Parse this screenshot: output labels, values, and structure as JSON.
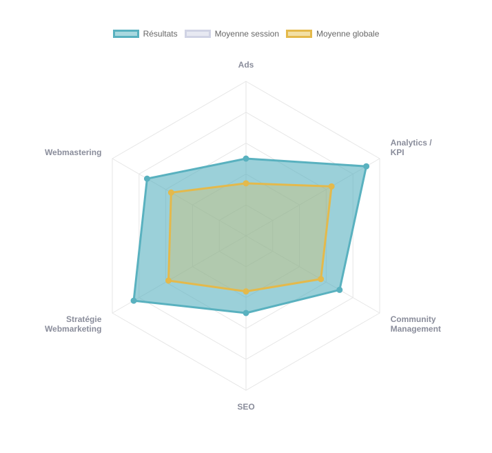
{
  "chart_data": {
    "type": "radar",
    "axes": [
      "Ads",
      "Analytics / KPI",
      "Community Management",
      "SEO",
      "Stratégie Webmarketing",
      "Webmastering"
    ],
    "axis_labels": [
      [
        "Ads"
      ],
      [
        "Analytics /",
        "KPI"
      ],
      [
        "Community",
        "Management"
      ],
      [
        "SEO"
      ],
      [
        "Stratégie",
        "Webmarketing"
      ],
      [
        "Webmastering"
      ]
    ],
    "scale": {
      "min": 0,
      "max": 5,
      "step": 1
    },
    "legend_position": "top",
    "grid": true,
    "series": [
      {
        "name": "Résultats",
        "values": [
          2.5,
          4.5,
          3.5,
          2.5,
          4.2,
          3.7
        ],
        "stroke": "#59b1bf",
        "fill": "rgba(89,177,191,0.6)",
        "swatch_fill": "#a9d8df",
        "visible": true
      },
      {
        "name": "Moyenne session",
        "values": [
          0,
          0,
          0,
          0,
          0,
          0
        ],
        "stroke": "#d0d3e4",
        "fill": "rgba(208,211,228,0.5)",
        "swatch_fill": "#e7e9f2",
        "visible": false
      },
      {
        "name": "Moyenne globale",
        "values": [
          1.7,
          3.2,
          2.8,
          1.8,
          2.9,
          2.8
        ],
        "stroke": "#e4b94b",
        "fill": "rgba(228,185,75,0.3)",
        "swatch_fill": "#f2dfa5",
        "visible": true
      }
    ]
  }
}
